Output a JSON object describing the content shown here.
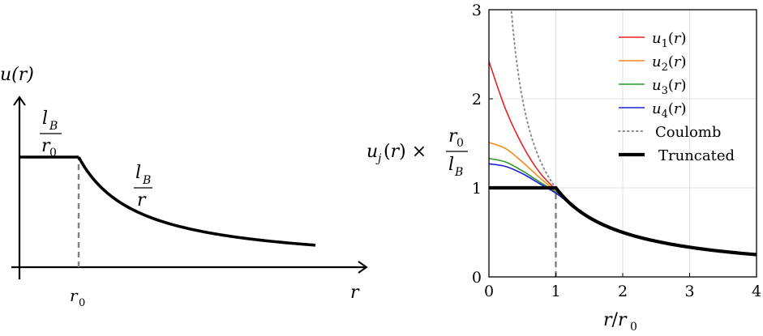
{
  "chart_data": [
    {
      "type": "line",
      "title": "",
      "xlabel": "r",
      "ylabel": "u(r)",
      "tick_labels_x": [
        "r",
        "0"
      ],
      "annotations": {
        "plateau_num": "l",
        "plateau_num_sub": "B",
        "plateau_den": "r",
        "plateau_den_sub": "0",
        "tail_num": "l",
        "tail_num_sub": "B",
        "tail_den": "r"
      },
      "series": [
        {
          "style": "thick-black",
          "x": [
            0,
            1
          ],
          "y": [
            1,
            1
          ]
        },
        {
          "style": "thick-black",
          "x": [
            1,
            1.5,
            2,
            2.5,
            3,
            3.5,
            4,
            4.5,
            5
          ],
          "y": [
            1,
            0.6667,
            0.5,
            0.4,
            0.3333,
            0.2857,
            0.25,
            0.2222,
            0.2
          ]
        },
        {
          "style": "dashed-gray",
          "x": [
            1,
            1
          ],
          "y": [
            0,
            1
          ]
        }
      ]
    },
    {
      "type": "line",
      "title": "",
      "xlabel": "r/r0",
      "ylabel": "u_j(r) × r0/lB",
      "xlim": [
        0,
        4
      ],
      "ylim": [
        0,
        3
      ],
      "xticks": [
        0,
        1,
        2,
        3,
        4
      ],
      "yticks": [
        0,
        1,
        2,
        3
      ],
      "grid": true,
      "legend_position": "top-right",
      "series": [
        {
          "name": "u1(r)",
          "label_main": "u",
          "label_sub": "1",
          "label_arg": "(r)",
          "color": "#e8231e",
          "x": [
            0,
            0.25,
            0.5,
            0.75,
            1.0,
            1.25,
            1.5,
            2,
            2.5,
            3,
            3.5,
            4
          ],
          "y": [
            2.42,
            1.88,
            1.48,
            1.18,
            0.98,
            0.8,
            0.67,
            0.5,
            0.4,
            0.333,
            0.286,
            0.25
          ]
        },
        {
          "name": "u2(r)",
          "label_main": "u",
          "label_sub": "2",
          "label_arg": "(r)",
          "color": "#f28c1a",
          "x": [
            0,
            0.25,
            0.5,
            0.75,
            1.0,
            1.25,
            1.5,
            2,
            2.5,
            3,
            3.5,
            4
          ],
          "y": [
            1.51,
            1.44,
            1.29,
            1.12,
            0.96,
            0.8,
            0.67,
            0.5,
            0.4,
            0.333,
            0.286,
            0.25
          ]
        },
        {
          "name": "u3(r)",
          "label_main": "u",
          "label_sub": "3",
          "label_arg": "(r)",
          "color": "#2b9a2b",
          "x": [
            0,
            0.25,
            0.5,
            0.75,
            1.0,
            1.25,
            1.5,
            2,
            2.5,
            3,
            3.5,
            4
          ],
          "y": [
            1.33,
            1.29,
            1.19,
            1.07,
            0.95,
            0.8,
            0.67,
            0.5,
            0.4,
            0.333,
            0.286,
            0.25
          ]
        },
        {
          "name": "u4(r)",
          "label_main": "u",
          "label_sub": "4",
          "label_arg": "(r)",
          "color": "#1d22d6",
          "x": [
            0,
            0.25,
            0.5,
            0.75,
            1.0,
            1.25,
            1.5,
            2,
            2.5,
            3,
            3.5,
            4
          ],
          "y": [
            1.27,
            1.24,
            1.16,
            1.05,
            0.94,
            0.8,
            0.67,
            0.5,
            0.4,
            0.333,
            0.286,
            0.25
          ]
        },
        {
          "name": "Coulomb",
          "label_main": "Coulomb",
          "color": "#8c8c8c",
          "style": "dotted",
          "x": [
            0.333,
            0.4,
            0.5,
            0.6,
            0.75,
            1,
            1.5,
            2,
            2.5,
            3,
            3.5,
            4
          ],
          "y": [
            3.0,
            2.5,
            2.0,
            1.667,
            1.333,
            1.0,
            0.667,
            0.5,
            0.4,
            0.333,
            0.286,
            0.25
          ]
        },
        {
          "name": "Truncated",
          "label_main": "Truncated",
          "color": "#000000",
          "style": "thick",
          "x": [
            0,
            1,
            1.25,
            1.5,
            2,
            2.5,
            3,
            3.5,
            4
          ],
          "y": [
            1,
            1,
            0.8,
            0.667,
            0.5,
            0.4,
            0.333,
            0.286,
            0.25
          ]
        }
      ],
      "extra_lines": [
        {
          "style": "dashed-gray",
          "x": [
            1,
            1
          ],
          "y": [
            0,
            1
          ]
        }
      ]
    }
  ]
}
